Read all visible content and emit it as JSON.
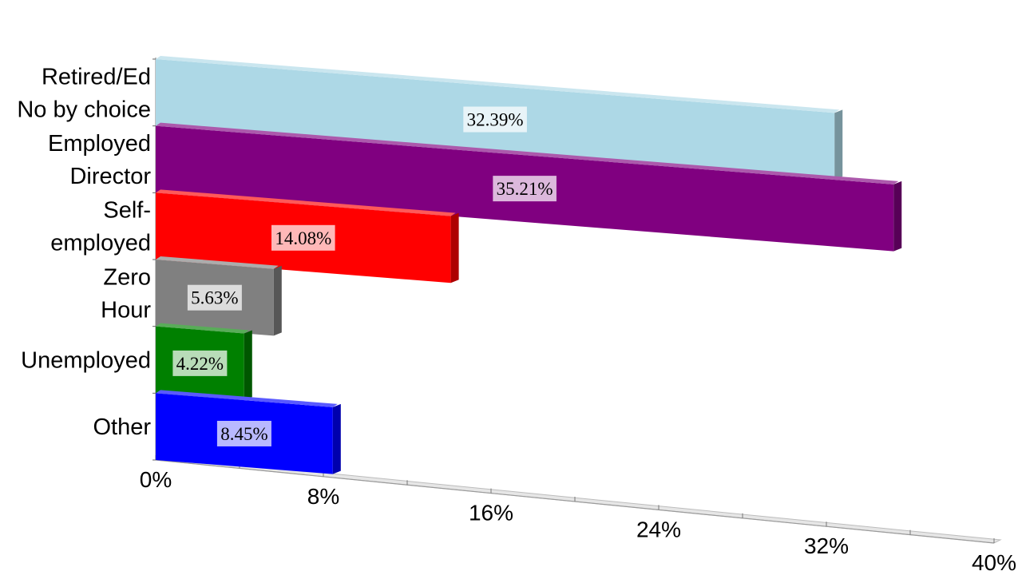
{
  "chart_data": {
    "type": "bar",
    "orientation": "horizontal",
    "perspective": "3d",
    "categories": [
      [
        "Retired/Ed",
        "No by choice"
      ],
      [
        "Employed",
        "Director"
      ],
      [
        "Self-",
        "employed"
      ],
      [
        "Zero",
        "Hour"
      ],
      [
        "Unemployed"
      ],
      [
        "Other"
      ]
    ],
    "values": [
      32.39,
      35.21,
      14.08,
      5.63,
      4.22,
      8.45
    ],
    "value_labels": [
      "32.39%",
      "35.21%",
      "14.08%",
      "5.63%",
      "4.22%",
      "8.45%"
    ],
    "bar_colors": [
      "#add8e6",
      "#800080",
      "#ff0000",
      "#808080",
      "#008000",
      "#0000ff"
    ],
    "xlim": [
      0,
      40
    ],
    "x_ticks": [
      0,
      8,
      16,
      24,
      32,
      40
    ],
    "x_tick_labels": [
      "0%",
      "8%",
      "16%",
      "24%",
      "32%",
      "40%"
    ],
    "title": "",
    "xlabel": "",
    "ylabel": "",
    "grid": false,
    "legend": "none"
  }
}
